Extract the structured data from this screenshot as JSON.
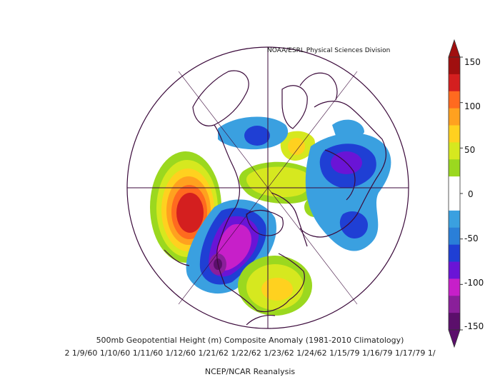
{
  "credit": "NOAA/ESRL Physical Sciences Division",
  "caption": {
    "title": "500mb Geopotential Height (m) Composite Anomaly (1981-2010 Climatology)",
    "dates": "2 1/9/60 1/10/60 1/11/60 1/12/60 1/21/62 1/22/62 1/23/62 1/24/62 1/15/79 1/16/79 1/17/79 1/",
    "source": "NCEP/NCAR Reanalysis"
  },
  "legend": {
    "ticks": [
      "150",
      "100",
      "50",
      "0",
      "-50",
      "-100",
      "-150"
    ],
    "colors": [
      "#5b0f6b",
      "#8a1f9a",
      "#c71fc9",
      "#6a14d6",
      "#1f3fd4",
      "#2a7fd8",
      "#3aa0e0",
      "#ffffff",
      "#ffffff",
      "#9bd81f",
      "#d6e81f",
      "#ffd11f",
      "#ffa11f",
      "#ff6a1f",
      "#d41f1f",
      "#a00f0f"
    ]
  }
}
